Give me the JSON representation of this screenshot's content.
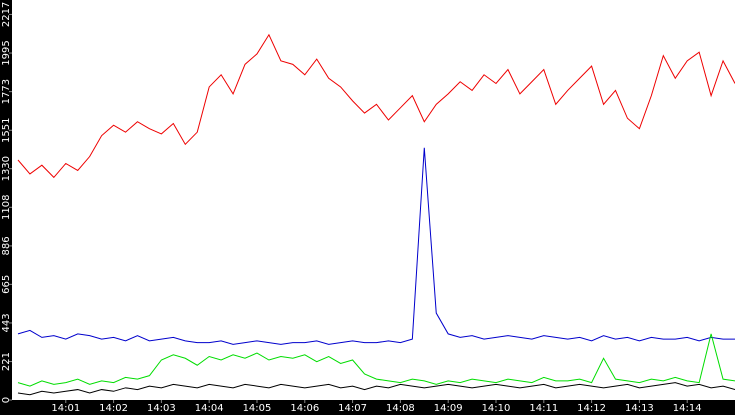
{
  "chart_data": {
    "type": "line",
    "x": [
      0,
      0.25,
      0.5,
      0.75,
      1,
      1.25,
      1.5,
      1.75,
      2,
      2.25,
      2.5,
      2.75,
      3,
      3.25,
      3.5,
      3.75,
      4,
      4.25,
      4.5,
      4.75,
      5,
      5.25,
      5.5,
      5.75,
      6,
      6.25,
      6.5,
      6.75,
      7,
      7.25,
      7.5,
      7.75,
      8,
      8.25,
      8.5,
      8.75,
      9,
      9.25,
      9.5,
      9.75,
      10,
      10.25,
      10.5,
      10.75,
      11,
      11.25,
      11.5,
      11.75,
      12,
      12.25,
      12.5,
      12.75,
      13,
      13.25,
      13.5,
      13.75,
      14,
      14.25,
      14.5,
      14.75,
      15
    ],
    "series": [
      {
        "color": "#ee0000",
        "values": [
          1380,
          1300,
          1350,
          1280,
          1360,
          1320,
          1400,
          1520,
          1580,
          1540,
          1600,
          1560,
          1530,
          1590,
          1470,
          1540,
          1800,
          1870,
          1760,
          1930,
          1990,
          2100,
          1950,
          1930,
          1870,
          1960,
          1850,
          1800,
          1720,
          1650,
          1700,
          1610,
          1680,
          1750,
          1600,
          1700,
          1760,
          1830,
          1780,
          1870,
          1820,
          1900,
          1760,
          1830,
          1900,
          1700,
          1780,
          1850,
          1920,
          1700,
          1780,
          1620,
          1560,
          1750,
          1980,
          1850,
          1950,
          2000,
          1750,
          1950,
          1820
        ]
      },
      {
        "color": "#0000cc",
        "values": [
          380,
          400,
          360,
          370,
          350,
          380,
          370,
          350,
          360,
          340,
          370,
          340,
          350,
          360,
          340,
          330,
          330,
          340,
          320,
          330,
          340,
          330,
          320,
          330,
          330,
          340,
          320,
          330,
          340,
          330,
          330,
          340,
          330,
          350,
          1450,
          500,
          380,
          360,
          370,
          350,
          360,
          370,
          360,
          350,
          370,
          360,
          350,
          360,
          340,
          370,
          350,
          360,
          340,
          360,
          350,
          350,
          360,
          340,
          360,
          350,
          350
        ]
      },
      {
        "color": "#00dd00",
        "values": [
          100,
          80,
          110,
          90,
          100,
          120,
          90,
          110,
          100,
          130,
          120,
          140,
          230,
          260,
          240,
          200,
          250,
          230,
          260,
          240,
          270,
          230,
          250,
          240,
          260,
          220,
          250,
          210,
          230,
          150,
          120,
          110,
          100,
          120,
          110,
          90,
          110,
          100,
          120,
          110,
          100,
          120,
          110,
          100,
          130,
          110,
          110,
          120,
          100,
          240,
          120,
          110,
          100,
          120,
          110,
          130,
          110,
          100,
          380,
          120,
          110
        ]
      },
      {
        "color": "#000000",
        "values": [
          40,
          30,
          50,
          40,
          50,
          60,
          40,
          60,
          50,
          70,
          60,
          80,
          70,
          90,
          80,
          70,
          90,
          80,
          70,
          90,
          80,
          70,
          90,
          80,
          70,
          80,
          90,
          70,
          80,
          60,
          80,
          70,
          90,
          80,
          70,
          80,
          90,
          80,
          70,
          80,
          90,
          80,
          70,
          80,
          90,
          70,
          80,
          90,
          80,
          70,
          80,
          90,
          70,
          80,
          90,
          100,
          80,
          90,
          70,
          80,
          60
        ]
      }
    ],
    "xlim": [
      -0.125,
      15
    ],
    "xticks": [
      {
        "value": 1,
        "label": "14:01"
      },
      {
        "value": 2,
        "label": "14:02"
      },
      {
        "value": 3,
        "label": "14:03"
      },
      {
        "value": 4,
        "label": "14:04"
      },
      {
        "value": 5,
        "label": "14:05"
      },
      {
        "value": 6,
        "label": "14:06"
      },
      {
        "value": 7,
        "label": "14:07"
      },
      {
        "value": 8,
        "label": "14:08"
      },
      {
        "value": 9,
        "label": "14:09"
      },
      {
        "value": 10,
        "label": "14:10"
      },
      {
        "value": 11,
        "label": "14:11"
      },
      {
        "value": 12,
        "label": "14:12"
      },
      {
        "value": 13,
        "label": "14:13"
      },
      {
        "value": 14,
        "label": "14:14"
      }
    ],
    "ylim": [
      0,
      2300
    ],
    "yticks": [
      0,
      221,
      443,
      665,
      886,
      1108,
      1330,
      1551,
      1773,
      1995,
      2217
    ],
    "grid": false
  }
}
